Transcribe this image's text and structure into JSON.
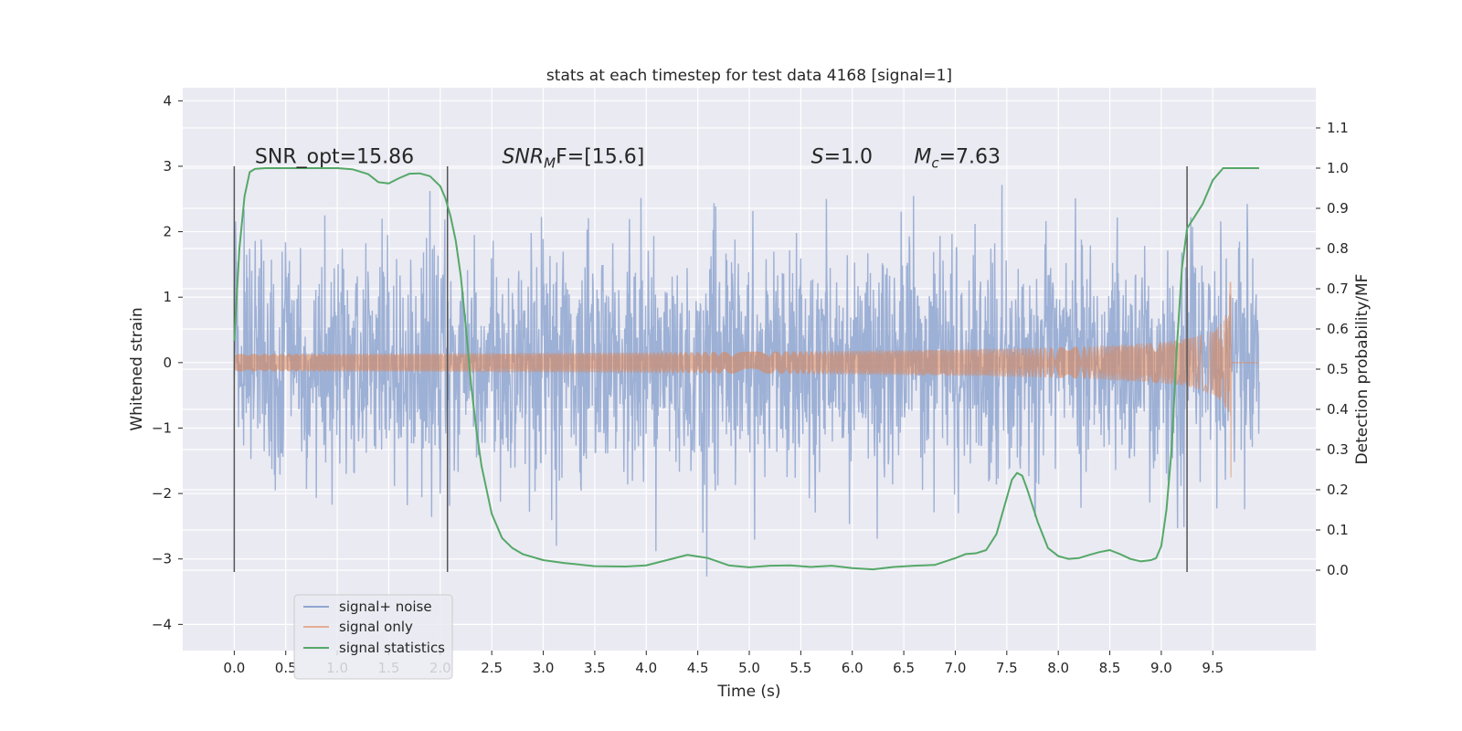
{
  "chart_data": {
    "type": "line",
    "title": "stats at each timestep for test data 4168 [signal=1]",
    "xlabel": "Time (s)",
    "ylabel": "Whitened strain",
    "ylabel_right": "Detection probability/MF",
    "xlim": [
      -0.5,
      10.5
    ],
    "ylim": [
      -4.4,
      4.2
    ],
    "ylim_right": [
      -0.2,
      1.2
    ],
    "x_ticks": [
      0.0,
      0.5,
      1.0,
      1.5,
      2.0,
      2.5,
      3.0,
      3.5,
      4.0,
      4.5,
      5.0,
      5.5,
      6.0,
      6.5,
      7.0,
      7.5,
      8.0,
      8.5,
      9.0,
      9.5
    ],
    "x_tick_labels": [
      "0.0",
      "0.5",
      "1.0",
      "1.5",
      "2.0",
      "2.5",
      "3.0",
      "3.5",
      "4.0",
      "4.5",
      "5.0",
      "5.5",
      "6.0",
      "6.5",
      "7.0",
      "7.5",
      "8.0",
      "8.5",
      "9.0",
      "9.5"
    ],
    "y_ticks": [
      -4,
      -3,
      -2,
      -1,
      0,
      1,
      2,
      3,
      4
    ],
    "y_tick_labels": [
      "−4",
      "−3",
      "−2",
      "−1",
      "0",
      "1",
      "2",
      "3",
      "4"
    ],
    "y_ticks_right": [
      0.0,
      0.1,
      0.2,
      0.3,
      0.4,
      0.5,
      0.6,
      0.7,
      0.8,
      0.9,
      1.0,
      1.1
    ],
    "y_tick_labels_right": [
      "0.0",
      "0.1",
      "0.2",
      "0.3",
      "0.4",
      "0.5",
      "0.6",
      "0.7",
      "0.8",
      "0.9",
      "1.0",
      "1.1"
    ],
    "grid": true,
    "legend_position": "lower-left",
    "colors": {
      "background": "#eaeaf2",
      "grid": "#ffffff",
      "noise": "#8fa6d0",
      "signal": "#dd8452",
      "stats": "#55a868",
      "vline": "#555555"
    },
    "vlines": [
      0.0,
      2.07,
      9.25
    ],
    "vline_range": [
      -3.2,
      3.0
    ],
    "annotations": {
      "snr_opt": "SNR_opt=15.86",
      "snr_mf_a": "SNR",
      "snr_mf_sub": "M",
      "snr_mf_b": "F=[15.6]",
      "s_a": "S",
      "s_b": "=1.0",
      "mc_a": "M",
      "mc_sub": "c",
      "mc_b": "=7.63"
    },
    "annotation_positions": {
      "snr_opt": [
        0.2,
        3.05
      ],
      "snr_mf": [
        2.6,
        3.05
      ],
      "s": [
        5.6,
        3.05
      ],
      "mc": [
        6.6,
        3.05
      ]
    },
    "series": [
      {
        "name": "signal+ noise",
        "kind": "noise",
        "x_range": [
          0.0,
          9.95
        ],
        "envelope_sigma": 0.9,
        "clip": [
          -4.1,
          3.85
        ]
      },
      {
        "name": "signal only",
        "kind": "chirp",
        "x_range": [
          0.0,
          9.95
        ],
        "merger_time": 9.68,
        "peak_amplitude": 2.1
      },
      {
        "name": "signal statistics",
        "kind": "probability",
        "axis": "right",
        "x": [
          0.0,
          0.05,
          0.1,
          0.15,
          0.2,
          0.3,
          0.5,
          0.8,
          1.0,
          1.15,
          1.3,
          1.4,
          1.5,
          1.6,
          1.7,
          1.8,
          1.9,
          2.0,
          2.05,
          2.1,
          2.15,
          2.2,
          2.25,
          2.3,
          2.35,
          2.4,
          2.5,
          2.6,
          2.7,
          2.8,
          3.0,
          3.2,
          3.5,
          3.8,
          4.0,
          4.2,
          4.4,
          4.6,
          4.8,
          5.0,
          5.2,
          5.4,
          5.6,
          5.8,
          6.0,
          6.2,
          6.4,
          6.6,
          6.8,
          7.0,
          7.1,
          7.2,
          7.3,
          7.4,
          7.5,
          7.55,
          7.6,
          7.65,
          7.7,
          7.8,
          7.9,
          8.0,
          8.1,
          8.2,
          8.3,
          8.4,
          8.5,
          8.6,
          8.7,
          8.8,
          8.9,
          8.95,
          9.0,
          9.05,
          9.1,
          9.15,
          9.2,
          9.25,
          9.3,
          9.4,
          9.5,
          9.6,
          9.7,
          9.95
        ],
        "y": [
          0.57,
          0.8,
          0.93,
          0.99,
          0.998,
          1.0,
          1.0,
          1.0,
          1.0,
          0.997,
          0.985,
          0.965,
          0.962,
          0.975,
          0.986,
          0.987,
          0.98,
          0.955,
          0.925,
          0.88,
          0.82,
          0.73,
          0.6,
          0.46,
          0.35,
          0.26,
          0.14,
          0.08,
          0.055,
          0.04,
          0.025,
          0.018,
          0.01,
          0.009,
          0.012,
          0.025,
          0.038,
          0.03,
          0.012,
          0.007,
          0.011,
          0.012,
          0.008,
          0.011,
          0.005,
          0.002,
          0.008,
          0.011,
          0.013,
          0.03,
          0.04,
          0.042,
          0.05,
          0.09,
          0.18,
          0.225,
          0.242,
          0.235,
          0.2,
          0.12,
          0.055,
          0.035,
          0.028,
          0.03,
          0.038,
          0.045,
          0.05,
          0.04,
          0.028,
          0.022,
          0.025,
          0.03,
          0.06,
          0.15,
          0.3,
          0.55,
          0.75,
          0.85,
          0.87,
          0.91,
          0.97,
          1.0,
          1.0,
          1.0
        ]
      }
    ]
  }
}
